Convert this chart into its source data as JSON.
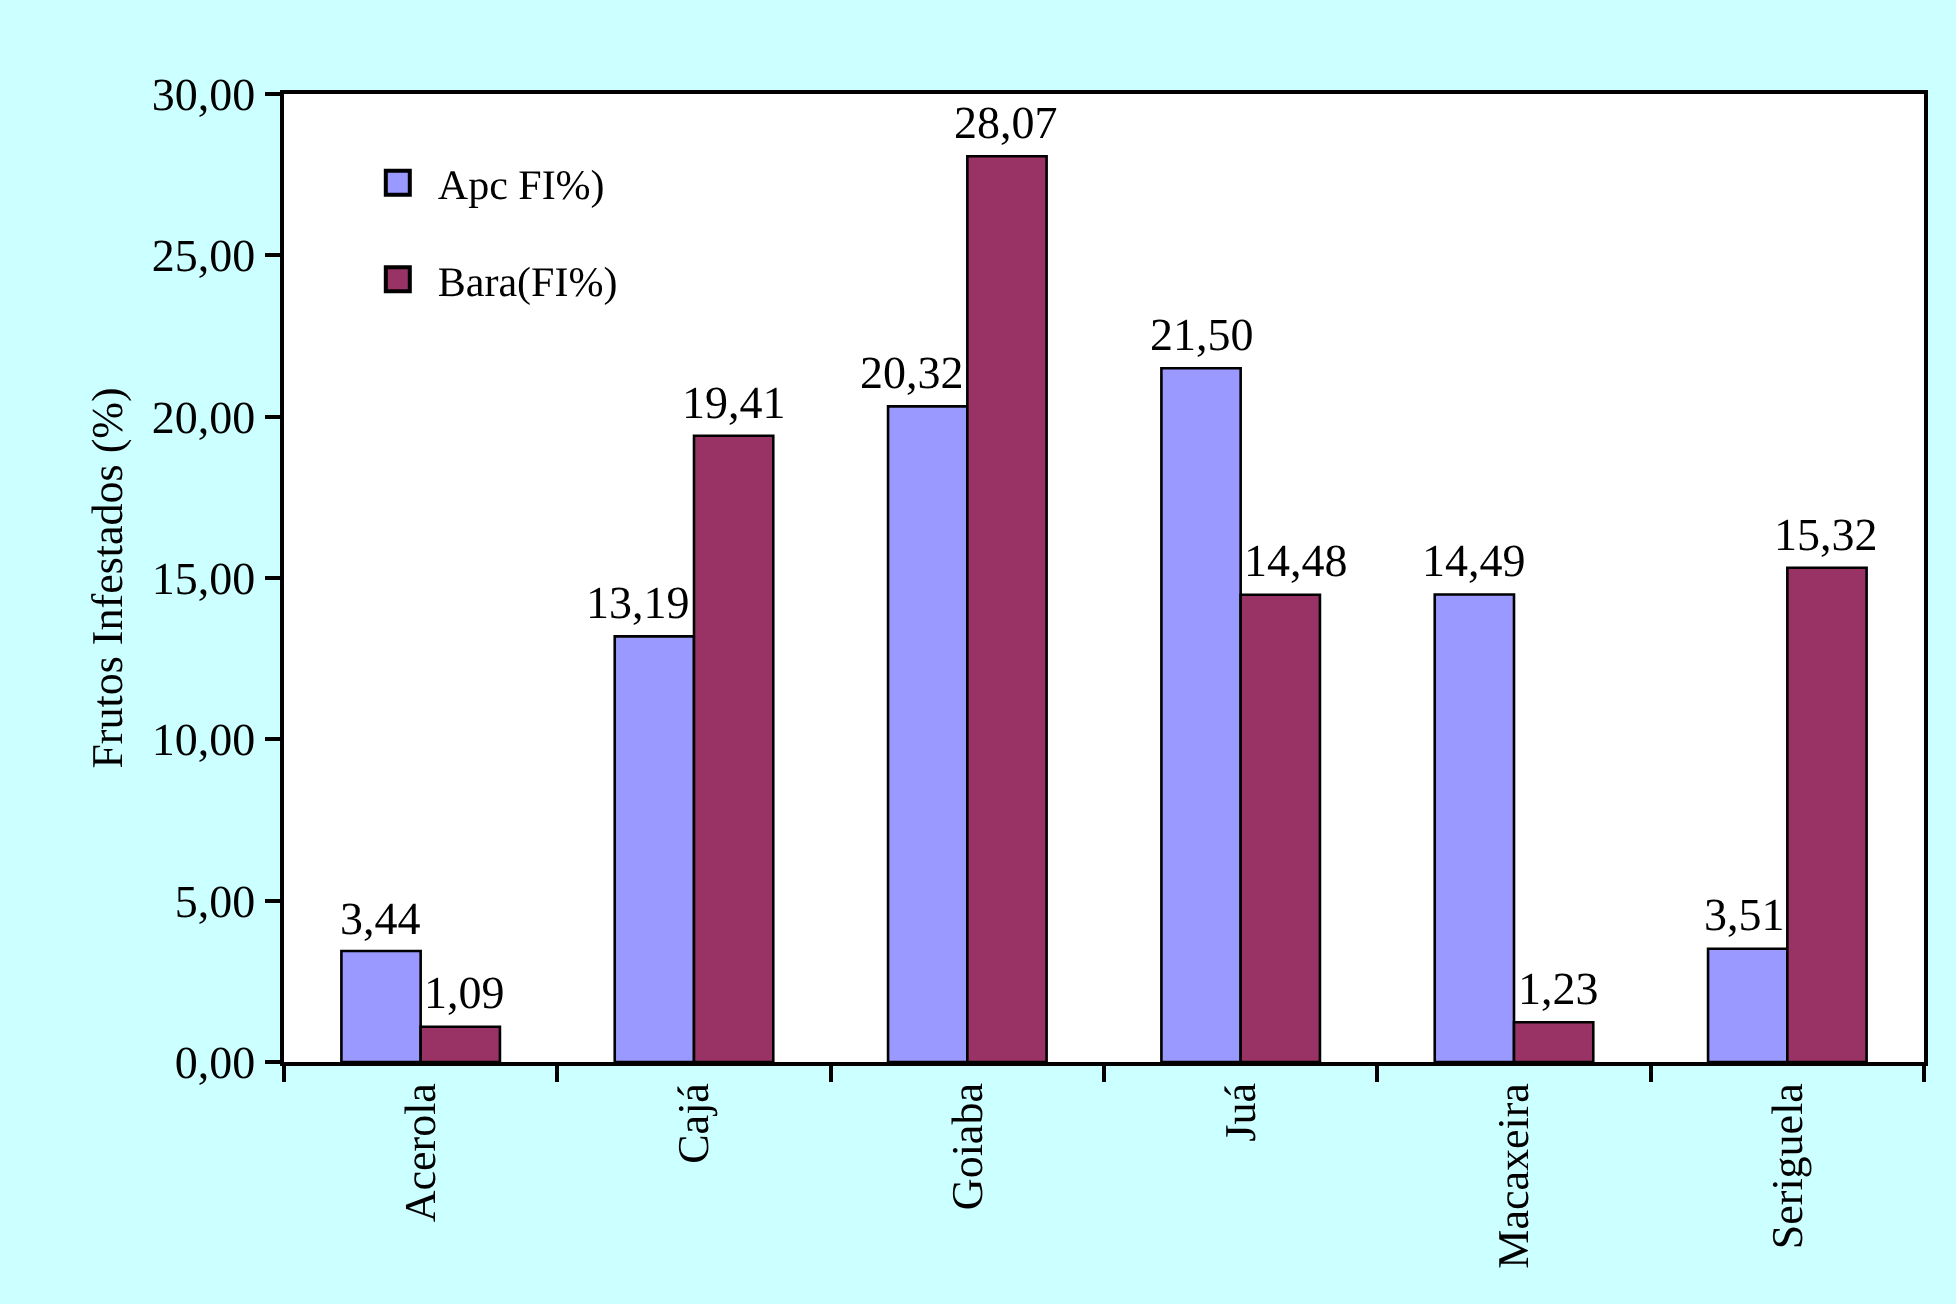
{
  "chart_data": {
    "type": "bar",
    "ylabel": "Frutos Infestados (%)",
    "categories": [
      "Acerola",
      "Cajá",
      "Goiaba",
      "Juá",
      "Macaxeira",
      "Seriguela"
    ],
    "series": [
      {
        "name": "Apc FI%)",
        "color": "#9999ff",
        "values": [
          3.44,
          13.19,
          20.32,
          21.5,
          14.49,
          3.51
        ],
        "value_labels": [
          "3,44",
          "13,19",
          "20,32",
          "21,50",
          "14,49",
          "3,51"
        ]
      },
      {
        "name": "Bara(FI%)",
        "color": "#993366",
        "values": [
          1.09,
          19.41,
          28.07,
          14.48,
          1.23,
          15.32
        ],
        "value_labels": [
          "1,09",
          "19,41",
          "28,07",
          "14,48",
          "1,23",
          "15,32"
        ]
      }
    ],
    "ylim": [
      0,
      30
    ],
    "yticks": [
      {
        "value": 0,
        "label": "0,00"
      },
      {
        "value": 5,
        "label": "5,00"
      },
      {
        "value": 10,
        "label": "10,00"
      },
      {
        "value": 15,
        "label": "15,00"
      },
      {
        "value": 20,
        "label": "20,00"
      },
      {
        "value": 25,
        "label": "25,00"
      },
      {
        "value": 30,
        "label": "30,00"
      }
    ],
    "legend": "top left"
  }
}
